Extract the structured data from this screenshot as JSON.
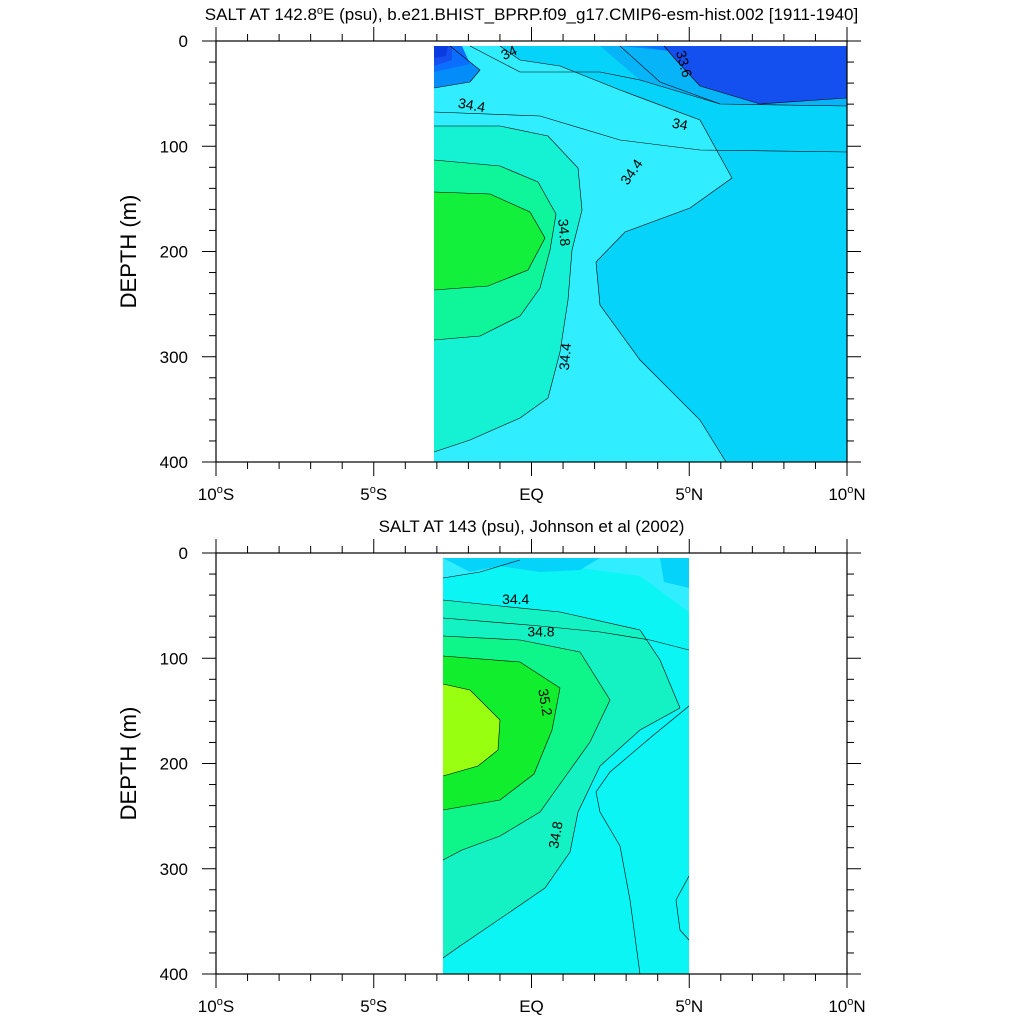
{
  "chart_data": [
    {
      "type": "contour",
      "title": "SALT AT 142.8°E (psu), b.e21.BHIST_BPRP.f09_g17.CMIP6-esm-hist.002 [1911-1940]",
      "title_parts": {
        "prefix": "SALT AT 142.8",
        "sup": "o",
        "rest": "E (psu), b.e21.BHIST_BPRP.f09_g17.CMIP6-esm-hist.002 [1911-1940]"
      },
      "ylabel": "DEPTH (m)",
      "xlabel": "",
      "xlim": [
        -10,
        10
      ],
      "ylim": [
        400,
        0
      ],
      "data_extent_x": [
        -3,
        10
      ],
      "x_ticks": [
        {
          "value": -10,
          "num": "10",
          "sup": "o",
          "hemi": "S"
        },
        {
          "value": -5,
          "num": "5",
          "sup": "o",
          "hemi": "S"
        },
        {
          "value": 0,
          "num": "EQ",
          "sup": "",
          "hemi": ""
        },
        {
          "value": 5,
          "num": "5",
          "sup": "o",
          "hemi": "N"
        },
        {
          "value": 10,
          "num": "10",
          "sup": "o",
          "hemi": "N"
        }
      ],
      "y_ticks": [
        "0",
        "100",
        "200",
        "300",
        "400"
      ],
      "contour_labels": [
        {
          "text": "34",
          "x": -0.7,
          "y": 12,
          "angle": -25
        },
        {
          "text": "33.6",
          "x": 4.8,
          "y": 22,
          "angle": 75
        },
        {
          "text": "34.4",
          "x": -1.9,
          "y": 62,
          "angle": 10
        },
        {
          "text": "34",
          "x": 4.7,
          "y": 80,
          "angle": 12
        },
        {
          "text": "34.4",
          "x": 3.2,
          "y": 125,
          "angle": -55
        },
        {
          "text": "34.8",
          "x": 1.0,
          "y": 182,
          "angle": 85
        },
        {
          "text": "34.4",
          "x": 1.1,
          "y": 300,
          "angle": -85
        }
      ],
      "fill_levels": [
        {
          "salinity_max": 33.4,
          "color": "#0a3ae0"
        },
        {
          "salinity_range": [
            33.4,
            33.6
          ],
          "color": "#1450f0"
        },
        {
          "salinity_range": [
            33.6,
            33.8
          ],
          "color": "#0a6eff"
        },
        {
          "salinity_range": [
            33.8,
            34.0
          ],
          "color": "#048cf8"
        },
        {
          "salinity_range": [
            34.0,
            34.2
          ],
          "color": "#08b4f8"
        },
        {
          "salinity_range": [
            34.2,
            34.4
          ],
          "color": "#06d3fa"
        },
        {
          "salinity_range": [
            34.4,
            34.6
          ],
          "color": "#30eeff"
        },
        {
          "salinity_range": [
            34.6,
            34.8
          ],
          "color": "#14f2d3"
        },
        {
          "salinity_range": [
            34.8,
            35.0
          ],
          "color": "#0ef59a"
        },
        {
          "salinity_min": 35.0,
          "color": "#12f03c"
        }
      ],
      "features": {
        "surface_fresh_pool": "33.6 minimum north of 5°N, 0-60 m",
        "subsurface_salinity_maximum": "34.8+ core centered near 3°S at ~190 m",
        "low_salinity_tongue": "34.2-34.4 tongue extending south to ~2°N near 250 m"
      }
    },
    {
      "type": "contour",
      "title": "SALT AT 143 (psu), Johnson et al (2002)",
      "ylabel": "DEPTH (m)",
      "xlabel": "",
      "xlim": [
        -10,
        10
      ],
      "ylim": [
        400,
        0
      ],
      "data_extent_x": [
        -2.8,
        5
      ],
      "x_ticks": [
        {
          "value": -10,
          "num": "10",
          "sup": "o",
          "hemi": "S"
        },
        {
          "value": -5,
          "num": "5",
          "sup": "o",
          "hemi": "S"
        },
        {
          "value": 0,
          "num": "EQ",
          "sup": "",
          "hemi": ""
        },
        {
          "value": 5,
          "num": "5",
          "sup": "o",
          "hemi": "N"
        },
        {
          "value": 10,
          "num": "10",
          "sup": "o",
          "hemi": "N"
        }
      ],
      "y_ticks": [
        "0",
        "100",
        "200",
        "300",
        "400"
      ],
      "contour_labels": [
        {
          "text": "34.4",
          "x": -0.5,
          "y": 45,
          "angle": 0
        },
        {
          "text": "34.8",
          "x": 0.3,
          "y": 76,
          "angle": 0
        },
        {
          "text": "35.2",
          "x": 0.4,
          "y": 142,
          "angle": 80
        },
        {
          "text": "34.8",
          "x": 0.8,
          "y": 268,
          "angle": -80
        }
      ],
      "fill_levels": [
        {
          "salinity_range": [
            34.2,
            34.4
          ],
          "color": "#06d3fa"
        },
        {
          "salinity_range": [
            34.4,
            34.6
          ],
          "color": "#30eeff"
        },
        {
          "salinity_range": [
            34.6,
            34.8
          ],
          "color": "#0af5f3"
        },
        {
          "salinity_range": [
            34.8,
            35.0
          ],
          "color": "#14f2c4"
        },
        {
          "salinity_range": [
            35.0,
            35.2
          ],
          "color": "#0ef58a"
        },
        {
          "salinity_range": [
            35.2,
            35.4
          ],
          "color": "#10ee2e"
        },
        {
          "salinity_min": 35.4,
          "color": "#98ff10"
        }
      ],
      "features": {
        "subsurface_salinity_maximum": "35.4+ core near 2.5°S at ~160 m",
        "low_salinity_region": "34.6 water near 3-5°N below 200 m"
      }
    }
  ]
}
